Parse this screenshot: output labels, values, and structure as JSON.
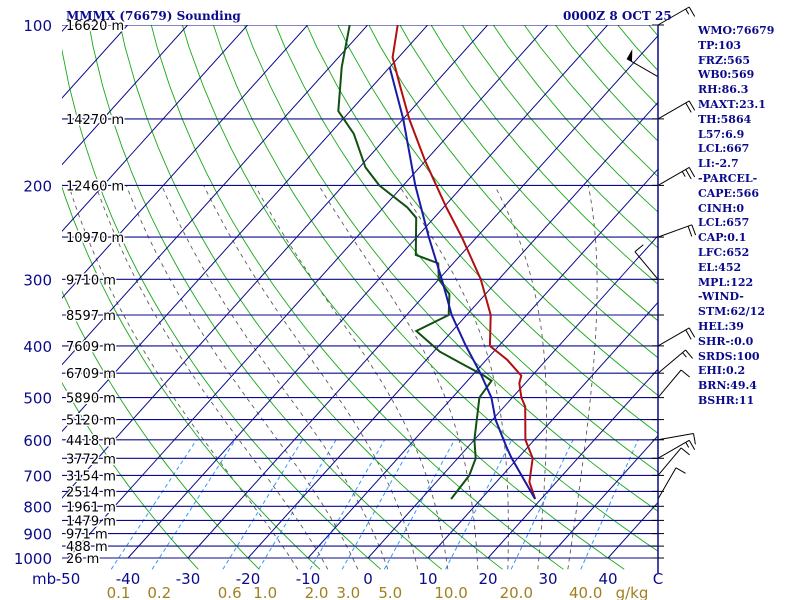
{
  "header": {
    "station": "MMMX (76679) Sounding",
    "valid_time": "0000Z  8 OCT 25"
  },
  "info_panel": [
    "WMO:76679",
    "TP:103",
    "FRZ:565",
    "WB0:569",
    "RH:86.3",
    "MAXT:23.1",
    "TH:5864",
    "L57:6.9",
    "LCL:667",
    "LI:-2.7",
    "-PARCEL-",
    "CAPE:566",
    "CINH:0",
    "LCL:657",
    "CAP:0.1",
    "LFC:652",
    "EL:452",
    "MPL:122",
    "-WIND-",
    "STM:62/12",
    "HEL:39",
    "SHR-:0.0",
    "SRDS:100",
    "EHI:0.2",
    "BRN:49.4",
    "BSHR:11"
  ],
  "colors": {
    "isobar": "#0a0a8c",
    "isotherm": "#0a0a8c",
    "dry_adiabat": "#18a818",
    "moist_adiabat": "#5a5a5a",
    "mixing_ratio": "#3399ff",
    "temperature": "#b01010",
    "dewpoint": "#105010",
    "parcel": "#1a1aa8",
    "axis_text": "#0a0a8c",
    "mixing_text": "#a08020"
  },
  "chart_data": {
    "type": "line",
    "title": "MMMX (76679) Sounding",
    "subtitle": "0000Z  8 OCT 25",
    "xlabel": "C",
    "ylabel": "mb",
    "skew_t_log_p": true,
    "pressure_ticks": [
      "100",
      "200",
      "300",
      "400",
      "500",
      "600",
      "700",
      "800",
      "900",
      "1000"
    ],
    "temperature_ticks": [
      "-50",
      "-40",
      "-30",
      "-20",
      "-10",
      "0",
      "10",
      "20",
      "30",
      "40"
    ],
    "mixing_ratio_ticks": [
      "0.1",
      "0.2",
      "0.6",
      "1.0",
      "2.0",
      "3.0",
      "5.0",
      "10.0",
      "20.0",
      "40.0"
    ],
    "mixing_ratio_unit": "g/kg",
    "height_labels": [
      {
        "p": 100,
        "text": "16620 m"
      },
      {
        "p": 150,
        "text": "14270 m"
      },
      {
        "p": 200,
        "text": "12460 m"
      },
      {
        "p": 250,
        "text": "10970 m"
      },
      {
        "p": 300,
        "text": "9710 m"
      },
      {
        "p": 350,
        "text": "8597 m"
      },
      {
        "p": 400,
        "text": "7609 m"
      },
      {
        "p": 450,
        "text": "6709 m"
      },
      {
        "p": 500,
        "text": "5890 m"
      },
      {
        "p": 550,
        "text": "5120 m"
      },
      {
        "p": 600,
        "text": "4418 m"
      },
      {
        "p": 650,
        "text": "3772 m"
      },
      {
        "p": 700,
        "text": "3154 m"
      },
      {
        "p": 750,
        "text": "2514 m"
      },
      {
        "p": 800,
        "text": "1961 m"
      },
      {
        "p": 850,
        "text": "1479 m"
      },
      {
        "p": 900,
        "text": "971 m"
      },
      {
        "p": 950,
        "text": "488 m"
      },
      {
        "p": 1000,
        "text": "26 m"
      }
    ],
    "series": [
      {
        "key": "temperature",
        "points": [
          [
            775,
            19.0
          ],
          [
            720,
            15.5
          ],
          [
            650,
            12.5
          ],
          [
            600,
            8.5
          ],
          [
            520,
            3.5
          ],
          [
            500,
            1.5
          ],
          [
            470,
            -1.0
          ],
          [
            455,
            -1.8
          ],
          [
            425,
            -6.5
          ],
          [
            400,
            -11.5
          ],
          [
            350,
            -16.0
          ],
          [
            300,
            -23.0
          ],
          [
            250,
            -32.5
          ],
          [
            220,
            -39.5
          ],
          [
            200,
            -44.5
          ],
          [
            180,
            -50.0
          ],
          [
            150,
            -59.0
          ],
          [
            130,
            -65.5
          ],
          [
            115,
            -71.0
          ],
          [
            100,
            -75.0
          ]
        ]
      },
      {
        "key": "dewpoint",
        "points": [
          [
            775,
            5.0
          ],
          [
            700,
            4.5
          ],
          [
            650,
            3.0
          ],
          [
            600,
            0.0
          ],
          [
            500,
            -5.5
          ],
          [
            465,
            -6.0
          ],
          [
            455,
            -8.0
          ],
          [
            430,
            -14.0
          ],
          [
            410,
            -19.0
          ],
          [
            375,
            -26.0
          ],
          [
            350,
            -23.0
          ],
          [
            320,
            -26.0
          ],
          [
            300,
            -30.0
          ],
          [
            280,
            -32.5
          ],
          [
            270,
            -37.5
          ],
          [
            230,
            -43.0
          ],
          [
            220,
            -46.0
          ],
          [
            200,
            -54.0
          ],
          [
            185,
            -59.0
          ],
          [
            160,
            -66.0
          ],
          [
            145,
            -72.0
          ],
          [
            120,
            -78.0
          ],
          [
            100,
            -83.0
          ]
        ]
      },
      {
        "key": "parcel",
        "points": [
          [
            775,
            19.0
          ],
          [
            650,
            9.0
          ],
          [
            620,
            6.5
          ],
          [
            550,
            0.5
          ],
          [
            500,
            -3.5
          ],
          [
            450,
            -9.0
          ],
          [
            400,
            -15.5
          ],
          [
            350,
            -22.5
          ],
          [
            300,
            -29.5
          ],
          [
            250,
            -38.0
          ],
          [
            200,
            -48.0
          ],
          [
            150,
            -60.0
          ],
          [
            120,
            -70.0
          ]
        ]
      }
    ],
    "wind_barbs": [
      {
        "p": 775,
        "dir": 30,
        "spd": 10
      },
      {
        "p": 700,
        "dir": 40,
        "spd": 10
      },
      {
        "p": 650,
        "dir": 60,
        "spd": 15
      },
      {
        "p": 600,
        "dir": 80,
        "spd": 10
      },
      {
        "p": 500,
        "dir": 40,
        "spd": 10
      },
      {
        "p": 450,
        "dir": 50,
        "spd": 15
      },
      {
        "p": 400,
        "dir": 60,
        "spd": 20
      },
      {
        "p": 300,
        "dir": 320,
        "spd": 10
      },
      {
        "p": 250,
        "dir": 70,
        "spd": 20
      },
      {
        "p": 200,
        "dir": 60,
        "spd": 25
      },
      {
        "p": 150,
        "dir": 60,
        "spd": 20
      },
      {
        "p": 125,
        "dir": 300,
        "spd": 50
      },
      {
        "p": 100,
        "dir": 60,
        "spd": 15
      }
    ]
  }
}
